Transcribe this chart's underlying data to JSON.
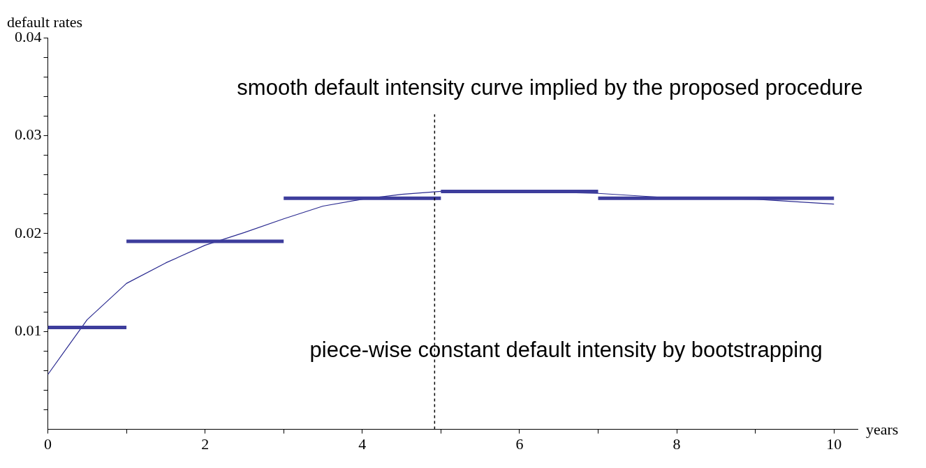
{
  "chart_data": {
    "type": "line",
    "xlabel": "years",
    "ylabel": "default rates",
    "annotations": [
      "smooth default intensity curve implied by the proposed procedure",
      "piece-wise constant default intensity by bootstrapping"
    ],
    "xlim": [
      0,
      10.3
    ],
    "ylim": [
      0,
      0.04
    ],
    "xticks": [
      0,
      {
        "value": 1,
        "label": null
      },
      2,
      {
        "value": 3,
        "label": null
      },
      4,
      {
        "value": 5,
        "label": null
      },
      6,
      {
        "value": 7,
        "label": null
      },
      8,
      {
        "value": 9,
        "label": null
      },
      10
    ],
    "yticks": [
      {
        "value": 0.002,
        "label": null
      },
      {
        "value": 0.004,
        "label": null
      },
      {
        "value": 0.006,
        "label": null
      },
      {
        "value": 0.008,
        "label": null
      },
      0.01,
      {
        "value": 0.012,
        "label": null
      },
      {
        "value": 0.014,
        "label": null
      },
      {
        "value": 0.016,
        "label": null
      },
      {
        "value": 0.018,
        "label": null
      },
      0.02,
      {
        "value": 0.022,
        "label": null
      },
      {
        "value": 0.024,
        "label": null
      },
      {
        "value": 0.026,
        "label": null
      },
      {
        "value": 0.028,
        "label": null
      },
      0.03,
      {
        "value": 0.032,
        "label": null
      },
      {
        "value": 0.034,
        "label": null
      },
      {
        "value": 0.036,
        "label": null
      },
      {
        "value": 0.038,
        "label": null
      },
      0.04
    ],
    "grid": false,
    "legend": false,
    "marker": "none",
    "ref_lines": [
      {
        "axis": "x",
        "value": 4.92,
        "line_style": "dashed",
        "color": "#000000"
      }
    ],
    "series": [
      {
        "color": "#3d3d9c",
        "x": [
          0,
          1
        ],
        "values": [
          0.0104,
          0.0104
        ]
      },
      {
        "color": "#3d3d9c",
        "x": [
          1,
          3
        ],
        "values": [
          0.0192,
          0.0192
        ]
      },
      {
        "color": "#3d3d9c",
        "x": [
          3,
          5
        ],
        "values": [
          0.0236,
          0.0236
        ]
      },
      {
        "color": "#3d3d9c",
        "x": [
          5,
          7
        ],
        "values": [
          0.0243,
          0.0243
        ]
      },
      {
        "color": "#3d3d9c",
        "x": [
          7,
          10
        ],
        "values": [
          0.0236,
          0.0236
        ]
      },
      {
        "color": "#2a2a90",
        "x": [
          0,
          0.5,
          1,
          1.5,
          2,
          2.5,
          3,
          3.5,
          4,
          4.5,
          5,
          6,
          7,
          8,
          9,
          10
        ],
        "values": [
          0.0056,
          0.0112,
          0.0149,
          0.017,
          0.0188,
          0.0201,
          0.0215,
          0.0228,
          0.0235,
          0.024,
          0.0243,
          0.0243,
          0.0241,
          0.0236,
          0.0235,
          0.023
        ]
      }
    ]
  }
}
